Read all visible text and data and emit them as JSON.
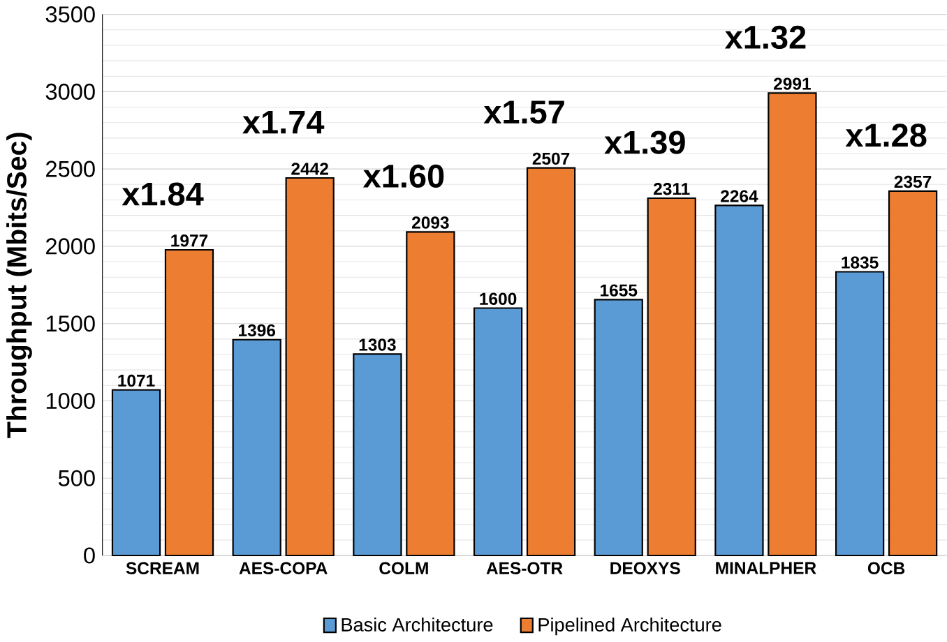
{
  "chart_data": {
    "type": "bar",
    "ylabel": "Throughput (Mbits/Sec)",
    "categories": [
      "SCREAM",
      "AES-COPA",
      "COLM",
      "AES-OTR",
      "DEOXYS",
      "MINALPHER",
      "OCB"
    ],
    "series": [
      {
        "name": "Basic Architecture",
        "color": "#5b9bd5",
        "values": [
          1071,
          1396,
          1303,
          1600,
          1655,
          2264,
          1835
        ]
      },
      {
        "name": "Pipelined Architecture",
        "color": "#ed7d31",
        "values": [
          1977,
          2442,
          2093,
          2507,
          2311,
          2991,
          2357
        ]
      }
    ],
    "ylim": [
      0,
      3500
    ],
    "yticks": [
      0,
      500,
      1000,
      1500,
      2000,
      2500,
      3000,
      3500
    ],
    "grid": "y",
    "legend": "bottom",
    "data_labels": true,
    "annotations": [
      "x1.84",
      "x1.74",
      "x1.60",
      "x1.57",
      "x1.39",
      "x1.32",
      "x1.28"
    ]
  }
}
